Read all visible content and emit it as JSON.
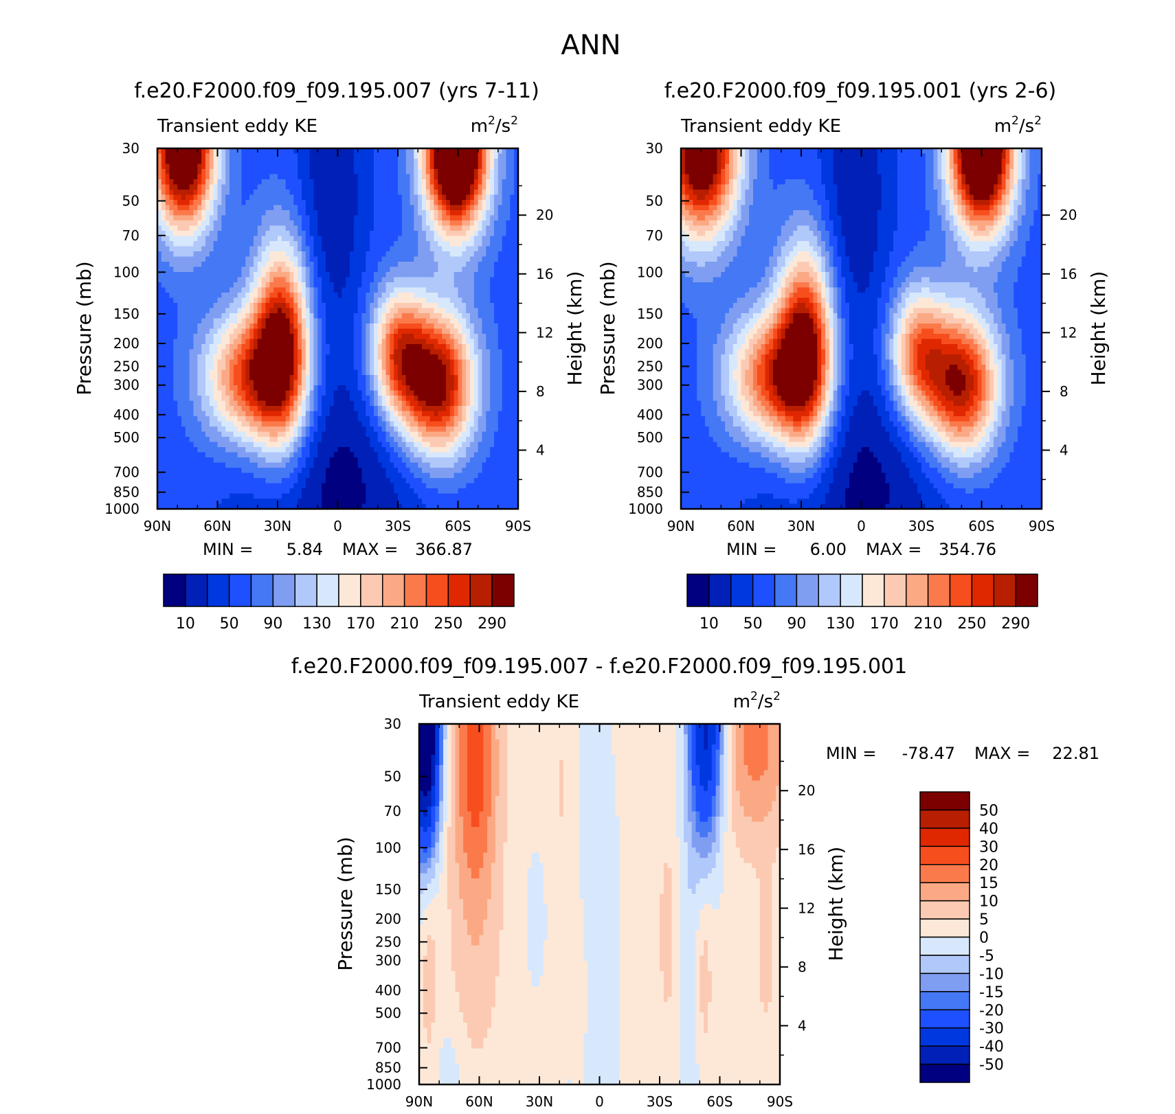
{
  "figure_title": "ANN",
  "chart_data": [
    {
      "type": "heatmap",
      "title": "f.e20.F2000.f09_f09.195.007 (yrs 7-11)",
      "left_string": "Transient eddy KE",
      "units_base": "m",
      "units_exp_1": "2",
      "units_mid": "/s",
      "units_exp_2": "2",
      "xlabel": "",
      "ylabel": "Pressure (mb)",
      "ylabel_right": "Height (km)",
      "x_ticks": [
        "90N",
        "60N",
        "30N",
        "0",
        "30S",
        "60S",
        "90S"
      ],
      "y_ticks": [
        "30",
        "50",
        "70",
        "100",
        "150",
        "200",
        "250",
        "300",
        "400",
        "500",
        "700",
        "850",
        "1000"
      ],
      "y_right_ticks": [
        "20",
        "16",
        "12",
        "8",
        "4"
      ],
      "min_label": "MIN =",
      "min_value": "5.84",
      "max_label": "MAX =",
      "max_value": "366.87",
      "color_levels": [
        10,
        30,
        50,
        70,
        90,
        110,
        130,
        150,
        170,
        190,
        210,
        230,
        250,
        270,
        290
      ],
      "colorbar_labels": [
        "10",
        "50",
        "90",
        "130",
        "170",
        "210",
        "250",
        "290"
      ],
      "field": {
        "base": 60,
        "blobs": [
          {
            "lat": 77,
            "p": 30,
            "amp": 310,
            "w_lat": 11,
            "w_lnp": 0.55
          },
          {
            "lat": -59,
            "p": 30,
            "amp": 370,
            "w_lat": 11,
            "w_lnp": 0.55
          },
          {
            "lat": 28,
            "p": 205,
            "amp": 230,
            "w_lat": 10,
            "w_lnp": 0.7
          },
          {
            "lat": 45,
            "p": 280,
            "amp": 180,
            "w_lat": 16,
            "w_lnp": 0.45
          },
          {
            "lat": -30,
            "p": 220,
            "amp": 170,
            "w_lat": 10,
            "w_lnp": 0.45
          },
          {
            "lat": -50,
            "p": 300,
            "amp": 250,
            "w_lat": 13,
            "w_lnp": 0.5
          },
          {
            "lat": 0,
            "p": 800,
            "amp": -55,
            "w_lat": 35,
            "w_lnp": 0.9
          },
          {
            "lat": 3,
            "p": 45,
            "amp": -50,
            "w_lat": 12,
            "w_lnp": 1.0
          }
        ]
      }
    },
    {
      "type": "heatmap",
      "title": "f.e20.F2000.f09_f09.195.001 (yrs 2-6)",
      "left_string": "Transient eddy KE",
      "units_base": "m",
      "units_exp_1": "2",
      "units_mid": "/s",
      "units_exp_2": "2",
      "xlabel": "",
      "ylabel": "Pressure (mb)",
      "ylabel_right": "Height (km)",
      "x_ticks": [
        "90N",
        "60N",
        "30N",
        "0",
        "30S",
        "60S",
        "90S"
      ],
      "y_ticks": [
        "30",
        "50",
        "70",
        "100",
        "150",
        "200",
        "250",
        "300",
        "400",
        "500",
        "700",
        "850",
        "1000"
      ],
      "y_right_ticks": [
        "20",
        "16",
        "12",
        "8",
        "4"
      ],
      "min_label": "MIN =",
      "min_value": "6.00",
      "max_label": "MAX =",
      "max_value": "354.76",
      "color_levels": [
        10,
        30,
        50,
        70,
        90,
        110,
        130,
        150,
        170,
        190,
        210,
        230,
        250,
        270,
        290
      ],
      "colorbar_labels": [
        "10",
        "50",
        "90",
        "130",
        "170",
        "210",
        "250",
        "290"
      ],
      "field": {
        "base": 60,
        "blobs": [
          {
            "lat": 80,
            "p": 30,
            "amp": 290,
            "w_lat": 13,
            "w_lnp": 0.6
          },
          {
            "lat": -60,
            "p": 30,
            "amp": 355,
            "w_lat": 11,
            "w_lnp": 0.55
          },
          {
            "lat": 28,
            "p": 210,
            "amp": 230,
            "w_lat": 10,
            "w_lnp": 0.7
          },
          {
            "lat": 45,
            "p": 280,
            "amp": 180,
            "w_lat": 16,
            "w_lnp": 0.45
          },
          {
            "lat": -28,
            "p": 220,
            "amp": 160,
            "w_lat": 10,
            "w_lnp": 0.45
          },
          {
            "lat": -50,
            "p": 300,
            "amp": 235,
            "w_lat": 13,
            "w_lnp": 0.5
          },
          {
            "lat": 0,
            "p": 800,
            "amp": -55,
            "w_lat": 35,
            "w_lnp": 0.9
          },
          {
            "lat": 3,
            "p": 45,
            "amp": -50,
            "w_lat": 12,
            "w_lnp": 1.0
          }
        ]
      }
    },
    {
      "type": "heatmap",
      "title": "f.e20.F2000.f09_f09.195.007 - f.e20.F2000.f09_f09.195.001",
      "left_string": "Transient eddy KE",
      "units_base": "m",
      "units_exp_1": "2",
      "units_mid": "/s",
      "units_exp_2": "2",
      "xlabel": "",
      "ylabel": "Pressure (mb)",
      "ylabel_right": "Height (km)",
      "x_ticks": [
        "90N",
        "60N",
        "30N",
        "0",
        "30S",
        "60S",
        "90S"
      ],
      "y_ticks": [
        "30",
        "50",
        "70",
        "100",
        "150",
        "200",
        "250",
        "300",
        "400",
        "500",
        "700",
        "850",
        "1000"
      ],
      "y_right_ticks": [
        "20",
        "16",
        "12",
        "8",
        "4"
      ],
      "min_label": "MIN =",
      "min_value": "-78.47",
      "max_label": "MAX =",
      "max_value": "22.81",
      "color_levels": [
        -50,
        -40,
        -30,
        -20,
        -15,
        -10,
        -5,
        0,
        5,
        10,
        15,
        20,
        30,
        40,
        50
      ],
      "colorbar_labels": [
        "50",
        "40",
        "30",
        "20",
        "15",
        "10",
        "5",
        "0",
        "-5",
        "-10",
        "-15",
        "-20",
        "-30",
        "-40",
        "-50"
      ],
      "field": {
        "base": 1.5,
        "blobs": [
          {
            "lat": 87,
            "p": 30,
            "amp": -78,
            "w_lat": 5,
            "w_lnp": 0.8
          },
          {
            "lat": 62,
            "p": 40,
            "amp": 21,
            "w_lat": 8,
            "w_lnp": 0.9
          },
          {
            "lat": 62,
            "p": 250,
            "amp": 6,
            "w_lat": 10,
            "w_lnp": 1.0
          },
          {
            "lat": -53,
            "p": 30,
            "amp": -45,
            "w_lat": 6,
            "w_lnp": 0.8
          },
          {
            "lat": -78,
            "p": 35,
            "amp": 16,
            "w_lat": 12,
            "w_lnp": 0.7
          },
          {
            "lat": 4,
            "p": 300,
            "amp": -4.5,
            "w_lat": 10,
            "w_lnp": 2.0
          },
          {
            "lat": 32,
            "p": 200,
            "amp": -6,
            "w_lat": 3,
            "w_lnp": 0.4
          },
          {
            "lat": -34,
            "p": 230,
            "amp": 7,
            "w_lat": 3,
            "w_lnp": 0.6
          },
          {
            "lat": -52,
            "p": 350,
            "amp": 7,
            "w_lat": 3,
            "w_lnp": 0.6
          },
          {
            "lat": -45,
            "p": 400,
            "amp": -6,
            "w_lat": 4,
            "w_lnp": 1.2
          },
          {
            "lat": -83,
            "p": 280,
            "amp": 7,
            "w_lat": 3,
            "w_lnp": 0.5
          },
          {
            "lat": 10,
            "p": 400,
            "amp": 5,
            "w_lat": 3,
            "w_lnp": 0.7
          },
          {
            "lat": 85,
            "p": 300,
            "amp": 6,
            "w_lat": 3,
            "w_lnp": 0.8
          },
          {
            "lat": 75,
            "p": 950,
            "amp": -5,
            "w_lat": 5,
            "w_lnp": 0.4
          },
          {
            "lat": 18,
            "p": 60,
            "amp": 5,
            "w_lat": 4,
            "w_lnp": 0.8
          }
        ]
      }
    }
  ],
  "colors": {
    "seq15": [
      "#000080",
      "#0020b8",
      "#0038e0",
      "#1e50ff",
      "#4578f5",
      "#7f9ef2",
      "#b0c8fa",
      "#d8e8fc",
      "#fde8d8",
      "#fccab2",
      "#fba985",
      "#fb7a4c",
      "#f74e1e",
      "#e02800",
      "#b81e00",
      "#7c0000"
    ],
    "div16": [
      "#000080",
      "#0020b8",
      "#0038e0",
      "#1e50ff",
      "#4578f5",
      "#7f9ef2",
      "#b0c8fa",
      "#d8e8fc",
      "#fde8d8",
      "#fccab2",
      "#fba985",
      "#fb7a4c",
      "#f74e1e",
      "#e02800",
      "#b81e00",
      "#7c0000"
    ]
  }
}
